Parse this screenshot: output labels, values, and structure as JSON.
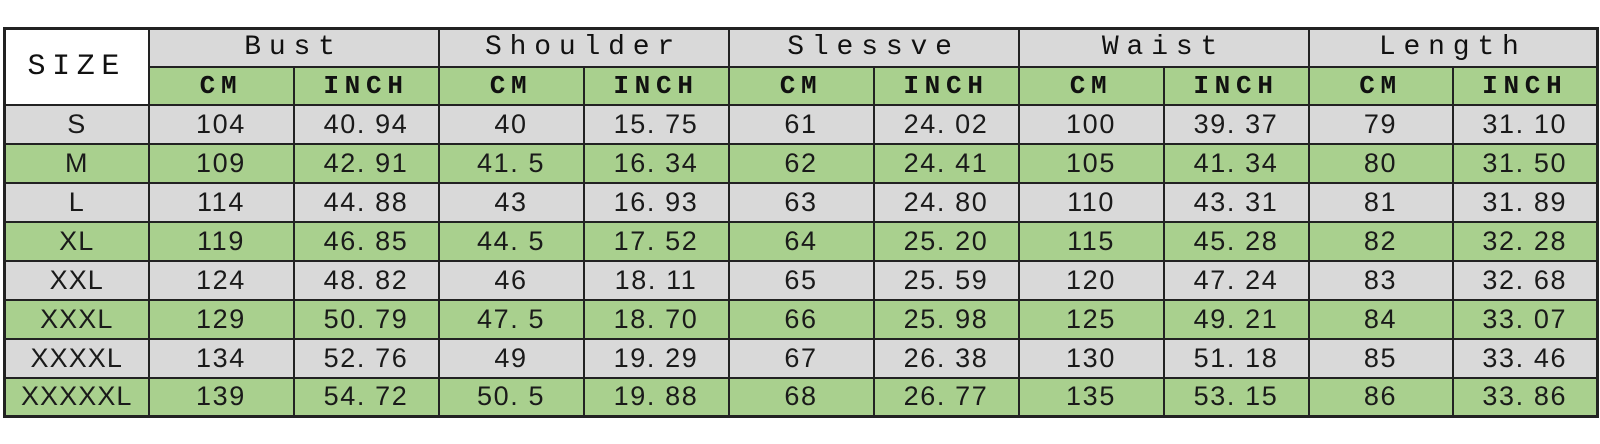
{
  "table": {
    "corner_label": "SIZE",
    "groups": [
      {
        "label": "Bust"
      },
      {
        "label": "Shoulder"
      },
      {
        "label": "Slessve"
      },
      {
        "label": "Waist"
      },
      {
        "label": "Length"
      }
    ],
    "units": [
      "CM",
      "INCH",
      "CM",
      "INCH",
      "CM",
      "INCH",
      "CM",
      "INCH",
      "CM",
      "INCH"
    ],
    "rows": [
      {
        "size": "S",
        "values": [
          "104",
          "40. 94",
          "40",
          "15. 75",
          "61",
          "24. 02",
          "100",
          "39. 37",
          "79",
          "31. 10"
        ]
      },
      {
        "size": "M",
        "values": [
          "109",
          "42. 91",
          "41. 5",
          "16. 34",
          "62",
          "24. 41",
          "105",
          "41. 34",
          "80",
          "31. 50"
        ]
      },
      {
        "size": "L",
        "values": [
          "114",
          "44. 88",
          "43",
          "16. 93",
          "63",
          "24. 80",
          "110",
          "43. 31",
          "81",
          "31. 89"
        ]
      },
      {
        "size": "XL",
        "values": [
          "119",
          "46. 85",
          "44. 5",
          "17. 52",
          "64",
          "25. 20",
          "115",
          "45. 28",
          "82",
          "32. 28"
        ]
      },
      {
        "size": "XXL",
        "values": [
          "124",
          "48. 82",
          "46",
          "18. 11",
          "65",
          "25. 59",
          "120",
          "47. 24",
          "83",
          "32. 68"
        ]
      },
      {
        "size": "XXXL",
        "values": [
          "129",
          "50. 79",
          "47. 5",
          "18. 70",
          "66",
          "25. 98",
          "125",
          "49. 21",
          "84",
          "33. 07"
        ]
      },
      {
        "size": "XXXXL",
        "values": [
          "134",
          "52. 76",
          "49",
          "19. 29",
          "67",
          "26. 38",
          "130",
          "51. 18",
          "85",
          "33. 46"
        ]
      },
      {
        "size": "XXXXXL",
        "values": [
          "139",
          "54. 72",
          "50. 5",
          "19. 88",
          "68",
          "26. 77",
          "135",
          "53. 15",
          "86",
          "33. 86"
        ]
      }
    ],
    "colors": {
      "header_gray": "#d9d9d9",
      "green": "#a9d08e",
      "corner_bg": "#ffffff",
      "border": "#222222"
    }
  },
  "chart_data": {
    "type": "table",
    "title": "",
    "columns": [
      "SIZE",
      "Bust CM",
      "Bust INCH",
      "Shoulder CM",
      "Shoulder INCH",
      "Slessve CM",
      "Slessve INCH",
      "Waist CM",
      "Waist INCH",
      "Length CM",
      "Length INCH"
    ],
    "rows": [
      [
        "S",
        104,
        40.94,
        40,
        15.75,
        61,
        24.02,
        100,
        39.37,
        79,
        31.1
      ],
      [
        "M",
        109,
        42.91,
        41.5,
        16.34,
        62,
        24.41,
        105,
        41.34,
        80,
        31.5
      ],
      [
        "L",
        114,
        44.88,
        43,
        16.93,
        63,
        24.8,
        110,
        43.31,
        81,
        31.89
      ],
      [
        "XL",
        119,
        46.85,
        44.5,
        17.52,
        64,
        25.2,
        115,
        45.28,
        82,
        32.28
      ],
      [
        "XXL",
        124,
        48.82,
        46,
        18.11,
        65,
        25.59,
        120,
        47.24,
        83,
        32.68
      ],
      [
        "XXXL",
        129,
        50.79,
        47.5,
        18.7,
        66,
        25.98,
        125,
        49.21,
        84,
        33.07
      ],
      [
        "XXXXL",
        134,
        52.76,
        49,
        19.29,
        67,
        26.38,
        130,
        51.18,
        85,
        33.46
      ],
      [
        "XXXXXL",
        139,
        54.72,
        50.5,
        19.88,
        68,
        26.77,
        135,
        53.15,
        86,
        33.86
      ]
    ],
    "layout": {
      "row_striping": [
        "gray",
        "green"
      ],
      "header_row1_bg": "#d9d9d9",
      "header_row2_bg": "#a9d08e"
    }
  }
}
